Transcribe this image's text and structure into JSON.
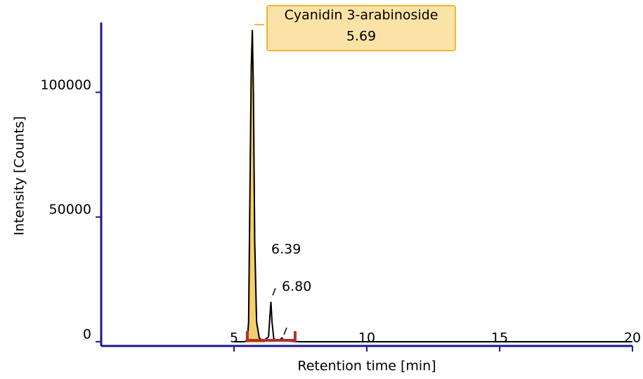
{
  "chart_data": {
    "type": "line",
    "x_label": "Retention time [min]",
    "y_label": "Intensity [Counts]",
    "xlim": [
      0,
      20
    ],
    "xticks": [
      5,
      10,
      15,
      20
    ],
    "ylim": [
      -1700,
      128000
    ],
    "yticks": [
      0,
      50000,
      100000
    ],
    "series": [
      {
        "color": "#000000",
        "x": [
          5.0,
          5.4,
          5.5,
          5.55,
          5.6,
          5.65,
          5.69,
          5.73,
          5.78,
          5.85,
          5.95,
          6.1,
          6.3,
          6.35,
          6.39,
          6.43,
          6.5,
          6.7,
          6.8,
          6.9,
          7.5,
          10,
          15,
          20
        ],
        "values": [
          0,
          0,
          500,
          8000,
          60000,
          110000,
          125000,
          100000,
          40000,
          8000,
          1500,
          300,
          2000,
          10000,
          16000,
          8000,
          1000,
          600,
          1500,
          300,
          0,
          0,
          0,
          0
        ]
      }
    ],
    "peak_area_color": "#f3cf6e",
    "peak_name": "Cyanidin 3-arabinoside",
    "peak_labels": [
      {
        "value": 5.69,
        "label": "5.69"
      },
      {
        "value": 6.39,
        "label": "6.39"
      },
      {
        "value": 6.8,
        "label": "6.80"
      }
    ],
    "integration_range": [
      5.5,
      7.3
    ],
    "integration_color": "#b03030",
    "axis_color": "#1a1a8c"
  }
}
